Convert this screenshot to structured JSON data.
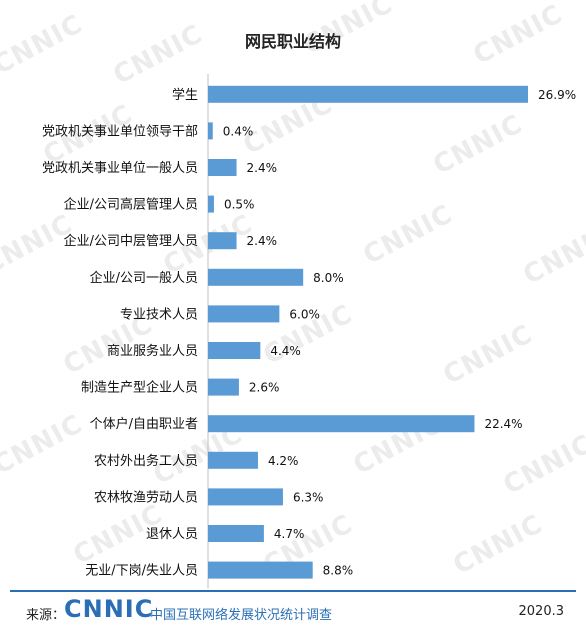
{
  "chart_data": {
    "type": "bar",
    "orientation": "horizontal",
    "title": "网民职业结构",
    "categories": [
      "学生",
      "党政机关事业单位领导干部",
      "党政机关事业单位一般人员",
      "企业/公司高层管理人员",
      "企业/公司中层管理人员",
      "企业/公司一般人员",
      "专业技术人员",
      "商业服务业人员",
      "制造生产型企业人员",
      "个体户/自由职业者",
      "农村外出务工人员",
      "农林牧渔劳动人员",
      "退休人员",
      "无业/下岗/失业人员"
    ],
    "values": [
      26.9,
      0.4,
      2.4,
      0.5,
      2.4,
      8.0,
      6.0,
      4.4,
      2.6,
      22.4,
      4.2,
      6.3,
      4.7,
      8.8
    ],
    "value_labels": [
      "26.9%",
      "0.4%",
      "2.4%",
      "0.5%",
      "2.4%",
      "8.0%",
      "6.0%",
      "4.4%",
      "2.6%",
      "22.4%",
      "4.2%",
      "6.3%",
      "4.7%",
      "8.8%"
    ],
    "bar_color": "#5b9bd5",
    "xlim": [
      0,
      30
    ],
    "grid": false,
    "legend": "none"
  },
  "footer": {
    "source_label": "来源：",
    "logo_text": "CNNIC",
    "org_name": "中国互联网络发展状况统计调查",
    "date": "2020.3"
  },
  "watermark_text": "CNNIC"
}
